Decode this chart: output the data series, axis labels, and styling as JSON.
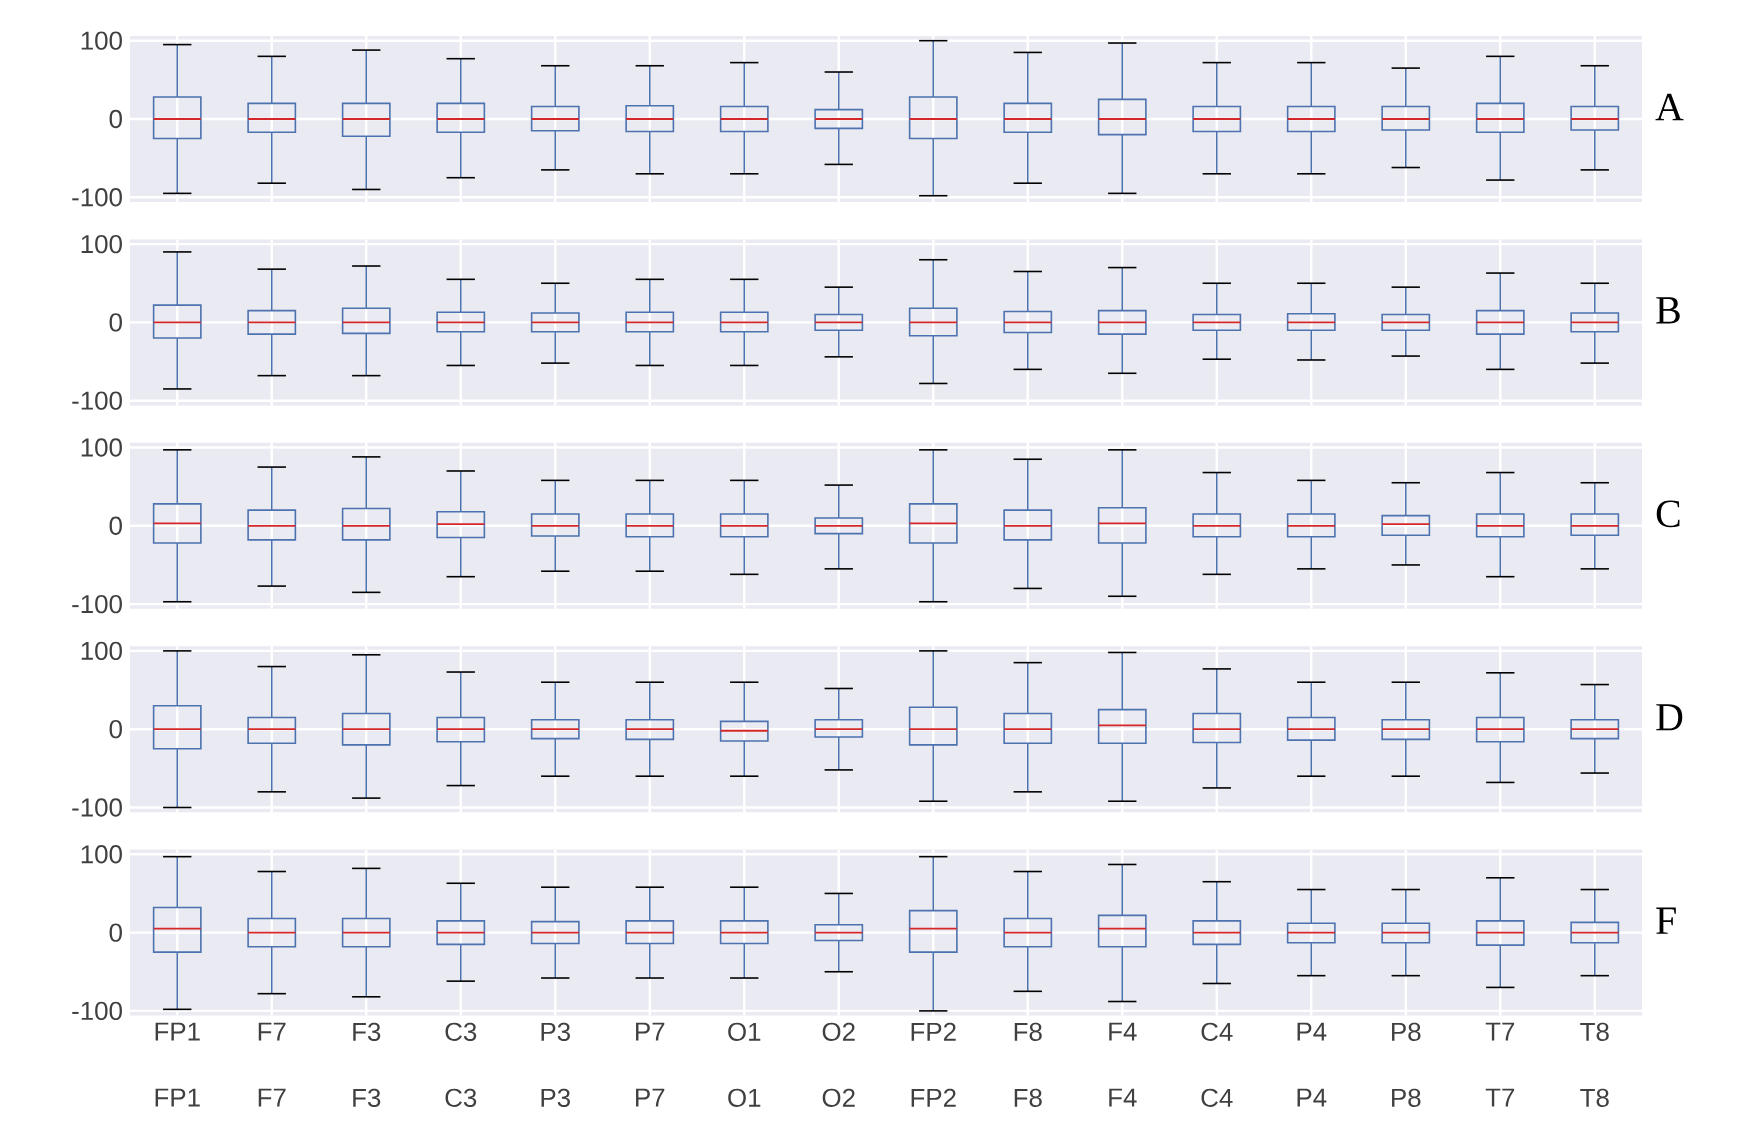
{
  "chart_data": [
    {
      "type": "box",
      "title": "A",
      "categories": [
        null,
        null,
        null,
        null,
        null,
        null,
        null,
        null,
        null,
        null,
        null,
        null,
        null,
        null,
        null,
        null
      ],
      "color": "#4c72b0",
      "ylim": [
        -106,
        106
      ],
      "yticks": [
        -100,
        0,
        100
      ],
      "grid": true,
      "tick_labels": "y",
      "boxes": [
        {
          "low": -95,
          "q1": -25,
          "median": 0,
          "q3": 28,
          "high": 95
        },
        {
          "low": -82,
          "q1": -17,
          "median": 0,
          "q3": 20,
          "high": 80
        },
        {
          "low": -90,
          "q1": -22,
          "median": 0,
          "q3": 20,
          "high": 88
        },
        {
          "low": -75,
          "q1": -17,
          "median": 0,
          "q3": 20,
          "high": 77
        },
        {
          "low": -65,
          "q1": -15,
          "median": 0,
          "q3": 16,
          "high": 68
        },
        {
          "low": -70,
          "q1": -16,
          "median": 0,
          "q3": 17,
          "high": 68
        },
        {
          "low": -70,
          "q1": -16,
          "median": 0,
          "q3": 16,
          "high": 72
        },
        {
          "low": -58,
          "q1": -12,
          "median": 0,
          "q3": 12,
          "high": 60
        },
        {
          "low": -98,
          "q1": -25,
          "median": 0,
          "q3": 28,
          "high": 100
        },
        {
          "low": -82,
          "q1": -17,
          "median": 0,
          "q3": 20,
          "high": 85
        },
        {
          "low": -95,
          "q1": -20,
          "median": 0,
          "q3": 25,
          "high": 97
        },
        {
          "low": -70,
          "q1": -16,
          "median": 0,
          "q3": 16,
          "high": 72
        },
        {
          "low": -70,
          "q1": -16,
          "median": 0,
          "q3": 16,
          "high": 72
        },
        {
          "low": -62,
          "q1": -14,
          "median": 0,
          "q3": 16,
          "high": 65
        },
        {
          "low": -78,
          "q1": -17,
          "median": 0,
          "q3": 20,
          "high": 80
        },
        {
          "low": -65,
          "q1": -14,
          "median": 0,
          "q3": 16,
          "high": 68
        }
      ]
    },
    {
      "type": "box",
      "title": "B",
      "categories": [
        null,
        null,
        null,
        null,
        null,
        null,
        null,
        null,
        null,
        null,
        null,
        null,
        null,
        null,
        null,
        null
      ],
      "color": "#4c72b0",
      "ylim": [
        -106,
        106
      ],
      "yticks": [
        -100,
        0,
        100
      ],
      "grid": true,
      "tick_labels": "y",
      "boxes": [
        {
          "low": -85,
          "q1": -20,
          "median": 0,
          "q3": 22,
          "high": 90
        },
        {
          "low": -68,
          "q1": -15,
          "median": 0,
          "q3": 15,
          "high": 68
        },
        {
          "low": -68,
          "q1": -14,
          "median": 0,
          "q3": 18,
          "high": 72
        },
        {
          "low": -55,
          "q1": -12,
          "median": 0,
          "q3": 13,
          "high": 55
        },
        {
          "low": -52,
          "q1": -12,
          "median": 0,
          "q3": 12,
          "high": 50
        },
        {
          "low": -55,
          "q1": -12,
          "median": 0,
          "q3": 13,
          "high": 55
        },
        {
          "low": -55,
          "q1": -12,
          "median": 0,
          "q3": 13,
          "high": 55
        },
        {
          "low": -44,
          "q1": -10,
          "median": 0,
          "q3": 10,
          "high": 45
        },
        {
          "low": -78,
          "q1": -17,
          "median": 0,
          "q3": 18,
          "high": 80
        },
        {
          "low": -60,
          "q1": -13,
          "median": 0,
          "q3": 14,
          "high": 65
        },
        {
          "low": -65,
          "q1": -15,
          "median": 0,
          "q3": 15,
          "high": 70
        },
        {
          "low": -47,
          "q1": -10,
          "median": 0,
          "q3": 10,
          "high": 50
        },
        {
          "low": -48,
          "q1": -10,
          "median": 0,
          "q3": 11,
          "high": 50
        },
        {
          "low": -43,
          "q1": -10,
          "median": 0,
          "q3": 10,
          "high": 45
        },
        {
          "low": -60,
          "q1": -15,
          "median": 0,
          "q3": 15,
          "high": 63
        },
        {
          "low": -52,
          "q1": -12,
          "median": 0,
          "q3": 12,
          "high": 50
        }
      ]
    },
    {
      "type": "box",
      "title": "C",
      "categories": [
        null,
        null,
        null,
        null,
        null,
        null,
        null,
        null,
        null,
        null,
        null,
        null,
        null,
        null,
        null,
        null
      ],
      "color": "#4c72b0",
      "ylim": [
        -106,
        106
      ],
      "yticks": [
        -100,
        0,
        100
      ],
      "grid": true,
      "tick_labels": "y",
      "boxes": [
        {
          "low": -97,
          "q1": -22,
          "median": 3,
          "q3": 28,
          "high": 97
        },
        {
          "low": -77,
          "q1": -18,
          "median": 0,
          "q3": 20,
          "high": 75
        },
        {
          "low": -85,
          "q1": -18,
          "median": 0,
          "q3": 22,
          "high": 88
        },
        {
          "low": -65,
          "q1": -15,
          "median": 2,
          "q3": 18,
          "high": 70
        },
        {
          "low": -58,
          "q1": -13,
          "median": 0,
          "q3": 15,
          "high": 58
        },
        {
          "low": -58,
          "q1": -14,
          "median": 0,
          "q3": 15,
          "high": 58
        },
        {
          "low": -62,
          "q1": -14,
          "median": 0,
          "q3": 15,
          "high": 58
        },
        {
          "low": -55,
          "q1": -10,
          "median": 0,
          "q3": 10,
          "high": 52
        },
        {
          "low": -97,
          "q1": -22,
          "median": 3,
          "q3": 28,
          "high": 97
        },
        {
          "low": -80,
          "q1": -18,
          "median": 0,
          "q3": 20,
          "high": 85
        },
        {
          "low": -90,
          "q1": -22,
          "median": 3,
          "q3": 23,
          "high": 97
        },
        {
          "low": -62,
          "q1": -14,
          "median": 0,
          "q3": 15,
          "high": 68
        },
        {
          "low": -55,
          "q1": -14,
          "median": 0,
          "q3": 15,
          "high": 58
        },
        {
          "low": -50,
          "q1": -12,
          "median": 2,
          "q3": 13,
          "high": 55
        },
        {
          "low": -65,
          "q1": -14,
          "median": 0,
          "q3": 15,
          "high": 68
        },
        {
          "low": -55,
          "q1": -12,
          "median": 0,
          "q3": 15,
          "high": 55
        }
      ]
    },
    {
      "type": "box",
      "title": "D",
      "categories": [
        null,
        null,
        null,
        null,
        null,
        null,
        null,
        null,
        null,
        null,
        null,
        null,
        null,
        null,
        null,
        null
      ],
      "color": "#4c72b0",
      "ylim": [
        -106,
        106
      ],
      "yticks": [
        -100,
        0,
        100
      ],
      "grid": true,
      "tick_labels": "y",
      "boxes": [
        {
          "low": -100,
          "q1": -25,
          "median": 0,
          "q3": 30,
          "high": 100
        },
        {
          "low": -80,
          "q1": -18,
          "median": 0,
          "q3": 15,
          "high": 80
        },
        {
          "low": -88,
          "q1": -20,
          "median": 0,
          "q3": 20,
          "high": 95
        },
        {
          "low": -72,
          "q1": -16,
          "median": 0,
          "q3": 15,
          "high": 73
        },
        {
          "low": -60,
          "q1": -12,
          "median": 0,
          "q3": 12,
          "high": 60
        },
        {
          "low": -60,
          "q1": -13,
          "median": 0,
          "q3": 12,
          "high": 60
        },
        {
          "low": -60,
          "q1": -15,
          "median": -2,
          "q3": 10,
          "high": 60
        },
        {
          "low": -52,
          "q1": -10,
          "median": 0,
          "q3": 12,
          "high": 52
        },
        {
          "low": -92,
          "q1": -20,
          "median": 0,
          "q3": 28,
          "high": 100
        },
        {
          "low": -80,
          "q1": -18,
          "median": 0,
          "q3": 20,
          "high": 85
        },
        {
          "low": -92,
          "q1": -18,
          "median": 5,
          "q3": 25,
          "high": 98
        },
        {
          "low": -75,
          "q1": -17,
          "median": 0,
          "q3": 20,
          "high": 77
        },
        {
          "low": -60,
          "q1": -14,
          "median": 0,
          "q3": 15,
          "high": 60
        },
        {
          "low": -60,
          "q1": -13,
          "median": 0,
          "q3": 12,
          "high": 60
        },
        {
          "low": -68,
          "q1": -16,
          "median": 0,
          "q3": 15,
          "high": 72
        },
        {
          "low": -56,
          "q1": -12,
          "median": 0,
          "q3": 12,
          "high": 57
        }
      ]
    },
    {
      "type": "box",
      "title": "F",
      "categories": [
        "FP1",
        "F7",
        "F3",
        "C3",
        "P3",
        "P7",
        "O1",
        "O2",
        "FP2",
        "F8",
        "F4",
        "C4",
        "P4",
        "P8",
        "T7",
        "T8"
      ],
      "color": "#4c72b0",
      "ylim": [
        -106,
        106
      ],
      "yticks": [
        -100,
        0,
        100
      ],
      "grid": true,
      "annotations": [
        "FP1",
        "F7",
        "F3",
        "C3",
        "P3",
        "P7",
        "O1",
        "O2",
        "FP2",
        "F8",
        "F4",
        "C4",
        "P4",
        "P8",
        "T7",
        "T8"
      ],
      "boxes": [
        {
          "low": -98,
          "q1": -25,
          "median": 5,
          "q3": 32,
          "high": 97
        },
        {
          "low": -78,
          "q1": -18,
          "median": 0,
          "q3": 18,
          "high": 78
        },
        {
          "low": -82,
          "q1": -18,
          "median": 0,
          "q3": 18,
          "high": 82
        },
        {
          "low": -62,
          "q1": -15,
          "median": 0,
          "q3": 15,
          "high": 63
        },
        {
          "low": -58,
          "q1": -14,
          "median": 0,
          "q3": 14,
          "high": 58
        },
        {
          "low": -58,
          "q1": -14,
          "median": 0,
          "q3": 15,
          "high": 58
        },
        {
          "low": -58,
          "q1": -14,
          "median": 0,
          "q3": 15,
          "high": 58
        },
        {
          "low": -50,
          "q1": -10,
          "median": 0,
          "q3": 10,
          "high": 50
        },
        {
          "low": -100,
          "q1": -25,
          "median": 5,
          "q3": 28,
          "high": 97
        },
        {
          "low": -75,
          "q1": -18,
          "median": 0,
          "q3": 18,
          "high": 78
        },
        {
          "low": -88,
          "q1": -18,
          "median": 5,
          "q3": 22,
          "high": 87
        },
        {
          "low": -65,
          "q1": -15,
          "median": 0,
          "q3": 15,
          "high": 65
        },
        {
          "low": -55,
          "q1": -13,
          "median": 0,
          "q3": 12,
          "high": 55
        },
        {
          "low": -55,
          "q1": -13,
          "median": 0,
          "q3": 12,
          "high": 55
        },
        {
          "low": -70,
          "q1": -16,
          "median": 0,
          "q3": 15,
          "high": 70
        },
        {
          "low": -55,
          "q1": -13,
          "median": 0,
          "q3": 13,
          "high": 55
        }
      ]
    }
  ]
}
